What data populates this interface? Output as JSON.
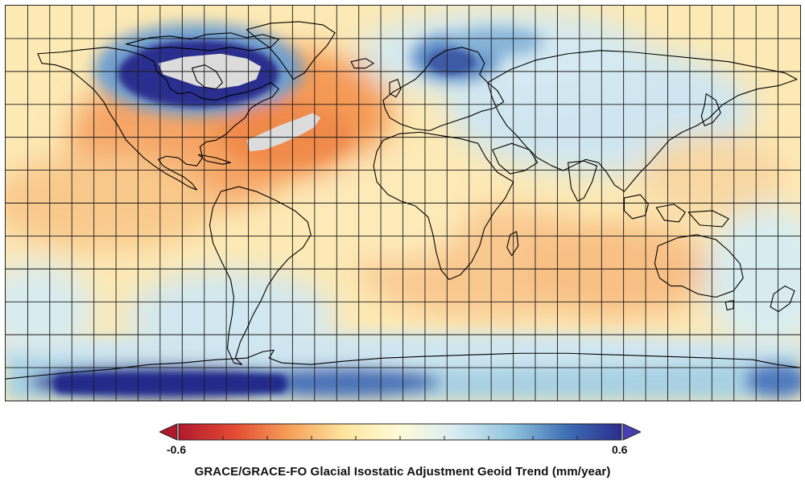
{
  "title": "GRACE/GRACE-FO Glacial Isostatic Adjustment Geoid Trend (mm/year)",
  "colorbar": {
    "min_label": "-0.6",
    "max_label": "0.6",
    "min_value": -0.6,
    "max_value": 0.6,
    "colors": [
      "#b2182b",
      "#e34a33",
      "#f6a05a",
      "#fde6a0",
      "#fefbd8",
      "#d8ecf2",
      "#92c5de",
      "#3f6fb5",
      "#2a2c8f"
    ],
    "extend": "both",
    "masked_color": "#dcdcdc"
  },
  "map": {
    "projection": "equirectangular",
    "grid": true,
    "coastlines": true
  }
}
